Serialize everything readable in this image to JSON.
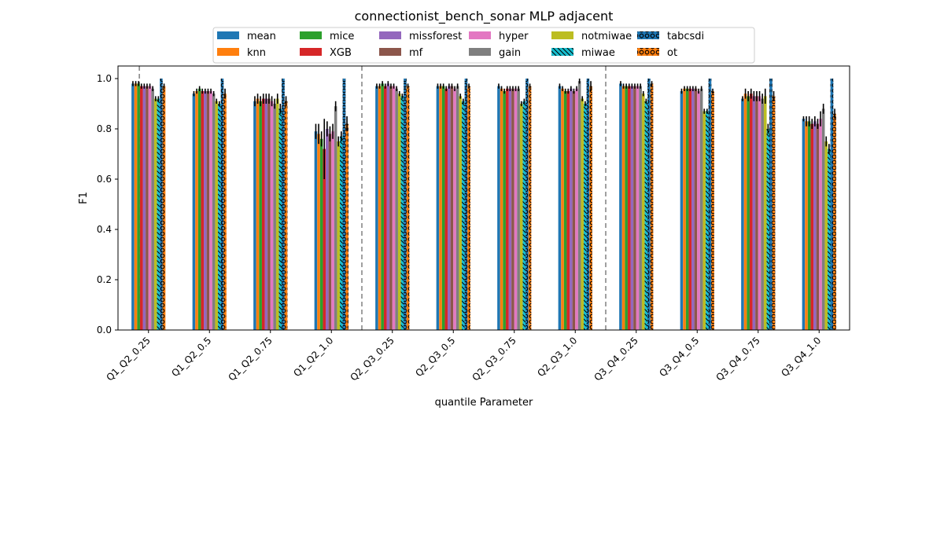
{
  "chart_data": {
    "type": "bar",
    "title": "connectionist_bench_sonar MLP adjacent",
    "xlabel": "quantile Parameter",
    "ylabel": "F1",
    "ylim": [
      0,
      1.05
    ],
    "yticks": [
      0.0,
      0.2,
      0.4,
      0.6,
      0.8,
      1.0
    ],
    "grid": false,
    "legend_position": "top-center",
    "separators_after_category_index": [
      -1,
      3,
      7
    ],
    "categories": [
      "Q1_Q2_0.25",
      "Q1_Q2_0.5",
      "Q1_Q2_0.75",
      "Q1_Q2_1.0",
      "Q2_Q3_0.25",
      "Q2_Q3_0.5",
      "Q2_Q3_0.75",
      "Q2_Q3_1.0",
      "Q3_Q4_0.25",
      "Q3_Q4_0.5",
      "Q3_Q4_0.75",
      "Q3_Q4_1.0"
    ],
    "series": [
      {
        "name": "mean",
        "color": "#1f77b4",
        "hatch": "none",
        "values": [
          0.98,
          0.94,
          0.91,
          0.79,
          0.97,
          0.97,
          0.97,
          0.97,
          0.98,
          0.95,
          0.92,
          0.84
        ],
        "errors": [
          0.01,
          0.01,
          0.02,
          0.03,
          0.01,
          0.01,
          0.01,
          0.01,
          0.01,
          0.01,
          0.01,
          0.01
        ]
      },
      {
        "name": "knn",
        "color": "#ff7f0e",
        "hatch": "none",
        "values": [
          0.98,
          0.95,
          0.92,
          0.78,
          0.97,
          0.97,
          0.96,
          0.96,
          0.97,
          0.96,
          0.94,
          0.83
        ],
        "errors": [
          0.01,
          0.01,
          0.02,
          0.04,
          0.01,
          0.01,
          0.01,
          0.01,
          0.01,
          0.01,
          0.02,
          0.02
        ]
      },
      {
        "name": "mice",
        "color": "#2ca02c",
        "hatch": "none",
        "values": [
          0.98,
          0.96,
          0.91,
          0.76,
          0.98,
          0.97,
          0.95,
          0.95,
          0.97,
          0.96,
          0.93,
          0.83
        ],
        "errors": [
          0.01,
          0.01,
          0.02,
          0.03,
          0.01,
          0.01,
          0.01,
          0.01,
          0.01,
          0.01,
          0.02,
          0.02
        ]
      },
      {
        "name": "XGB",
        "color": "#d62728",
        "hatch": "none",
        "values": [
          0.97,
          0.95,
          0.92,
          0.72,
          0.97,
          0.96,
          0.96,
          0.95,
          0.97,
          0.96,
          0.94,
          0.82
        ],
        "errors": [
          0.01,
          0.01,
          0.02,
          0.12,
          0.01,
          0.01,
          0.01,
          0.01,
          0.01,
          0.01,
          0.02,
          0.02
        ]
      },
      {
        "name": "missforest",
        "color": "#9467bd",
        "hatch": "none",
        "values": [
          0.97,
          0.95,
          0.92,
          0.8,
          0.98,
          0.97,
          0.96,
          0.96,
          0.97,
          0.96,
          0.93,
          0.83
        ],
        "errors": [
          0.01,
          0.01,
          0.02,
          0.03,
          0.01,
          0.01,
          0.01,
          0.01,
          0.01,
          0.01,
          0.02,
          0.02
        ]
      },
      {
        "name": "mf",
        "color": "#8c564b",
        "hatch": "none",
        "values": [
          0.97,
          0.95,
          0.92,
          0.78,
          0.97,
          0.97,
          0.96,
          0.95,
          0.97,
          0.96,
          0.93,
          0.82
        ],
        "errors": [
          0.01,
          0.01,
          0.02,
          0.03,
          0.01,
          0.01,
          0.01,
          0.01,
          0.01,
          0.01,
          0.02,
          0.02
        ]
      },
      {
        "name": "hyper",
        "color": "#e377c2",
        "hatch": "none",
        "values": [
          0.97,
          0.95,
          0.91,
          0.79,
          0.97,
          0.96,
          0.96,
          0.96,
          0.97,
          0.95,
          0.93,
          0.84
        ],
        "errors": [
          0.01,
          0.01,
          0.02,
          0.03,
          0.01,
          0.01,
          0.01,
          0.01,
          0.01,
          0.01,
          0.02,
          0.03
        ]
      },
      {
        "name": "gain",
        "color": "#7f7f7f",
        "hatch": "none",
        "values": [
          0.96,
          0.94,
          0.9,
          0.89,
          0.96,
          0.97,
          0.96,
          0.99,
          0.97,
          0.96,
          0.92,
          0.88
        ],
        "errors": [
          0.01,
          0.01,
          0.02,
          0.02,
          0.01,
          0.01,
          0.01,
          0.01,
          0.01,
          0.01,
          0.02,
          0.02
        ]
      },
      {
        "name": "notmiwae",
        "color": "#bcbd22",
        "hatch": "none",
        "values": [
          0.92,
          0.91,
          0.92,
          0.75,
          0.94,
          0.93,
          0.9,
          0.92,
          0.94,
          0.87,
          0.93,
          0.75
        ],
        "errors": [
          0.01,
          0.01,
          0.02,
          0.02,
          0.01,
          0.01,
          0.01,
          0.01,
          0.01,
          0.01,
          0.03,
          0.02
        ]
      },
      {
        "name": "miwae",
        "color": "#17becf",
        "hatch": "backslash",
        "values": [
          0.92,
          0.9,
          0.88,
          0.77,
          0.93,
          0.91,
          0.91,
          0.9,
          0.91,
          0.87,
          0.8,
          0.72
        ],
        "errors": [
          0.01,
          0.01,
          0.02,
          0.02,
          0.01,
          0.01,
          0.01,
          0.01,
          0.01,
          0.01,
          0.02,
          0.02
        ]
      },
      {
        "name": "tabcsdi",
        "color": "#1f77b4",
        "hatch": "ring",
        "values": [
          1.0,
          1.0,
          1.0,
          1.0,
          1.0,
          1.0,
          1.0,
          1.0,
          1.0,
          1.0,
          1.0,
          1.0
        ],
        "errors": [
          0.0,
          0.0,
          0.0,
          0.0,
          0.0,
          0.0,
          0.0,
          0.0,
          0.0,
          0.0,
          0.0,
          0.0
        ]
      },
      {
        "name": "ot",
        "color": "#ff7f0e",
        "hatch": "ring",
        "values": [
          0.97,
          0.94,
          0.91,
          0.82,
          0.97,
          0.97,
          0.97,
          0.97,
          0.98,
          0.95,
          0.93,
          0.86
        ],
        "errors": [
          0.01,
          0.02,
          0.02,
          0.03,
          0.01,
          0.01,
          0.01,
          0.02,
          0.01,
          0.01,
          0.02,
          0.02
        ]
      }
    ]
  }
}
